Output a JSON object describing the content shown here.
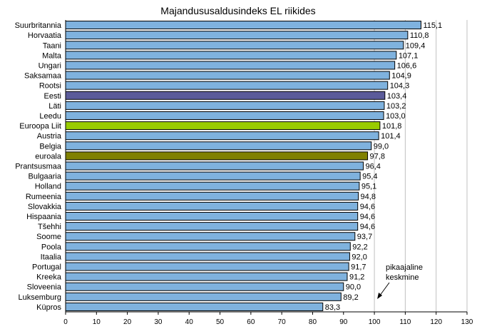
{
  "chart_data": {
    "type": "bar",
    "orientation": "horizontal",
    "title": "Majandususaldusindeks EL riikides",
    "xlabel": "",
    "ylabel": "",
    "xlim": [
      0,
      130
    ],
    "xticks": [
      0,
      10,
      20,
      30,
      40,
      50,
      60,
      70,
      80,
      90,
      100,
      110,
      120,
      130
    ],
    "grid": "vertical gridlines at 100, 110, 120, 130",
    "categories": [
      "Suurbritannia",
      "Horvaatia",
      "Taani",
      "Malta",
      "Ungari",
      "Saksamaa",
      "Rootsi",
      "Eesti",
      "Läti",
      "Leedu",
      "Euroopa Liit",
      "Austria",
      "Belgia",
      "euroala",
      "Prantsusmaa",
      "Bulgaaria",
      "Holland",
      "Rumeenia",
      "Slovakkia",
      "Hispaania",
      "Tšehhi",
      "Soome",
      "Poola",
      "Itaalia",
      "Portugal",
      "Kreeka",
      "Sloveenia",
      "Luksemburg",
      "Küpros"
    ],
    "values": [
      115.1,
      110.8,
      109.4,
      107.1,
      106.6,
      104.9,
      104.3,
      103.4,
      103.2,
      103.0,
      101.8,
      101.4,
      99.0,
      97.8,
      96.4,
      95.4,
      95.1,
      94.8,
      94.6,
      94.6,
      94.6,
      93.7,
      92.2,
      92.0,
      91.7,
      91.2,
      90.0,
      89.2,
      83.3
    ],
    "value_labels": [
      "115,1",
      "110,8",
      "109,4",
      "107,1",
      "106,6",
      "104,9",
      "104,3",
      "103,4",
      "103,2",
      "103,0",
      "101,8",
      "101,4",
      "99,0",
      "97,8",
      "96,4",
      "95,4",
      "95,1",
      "94,8",
      "94,6",
      "94,6",
      "94,6",
      "93,7",
      "92,2",
      "92,0",
      "91,7",
      "91,2",
      "90,0",
      "89,2",
      "83,3"
    ],
    "colors": {
      "default": "#7fb2de",
      "Eesti": "#5b5b9a",
      "Euroopa Liit": "#99cc00",
      "euroala": "#808000",
      "grid": "#c0c0c0"
    },
    "annotation": {
      "lines": [
        "pikaajaline",
        "keskmine"
      ],
      "points_to": 100
    }
  }
}
